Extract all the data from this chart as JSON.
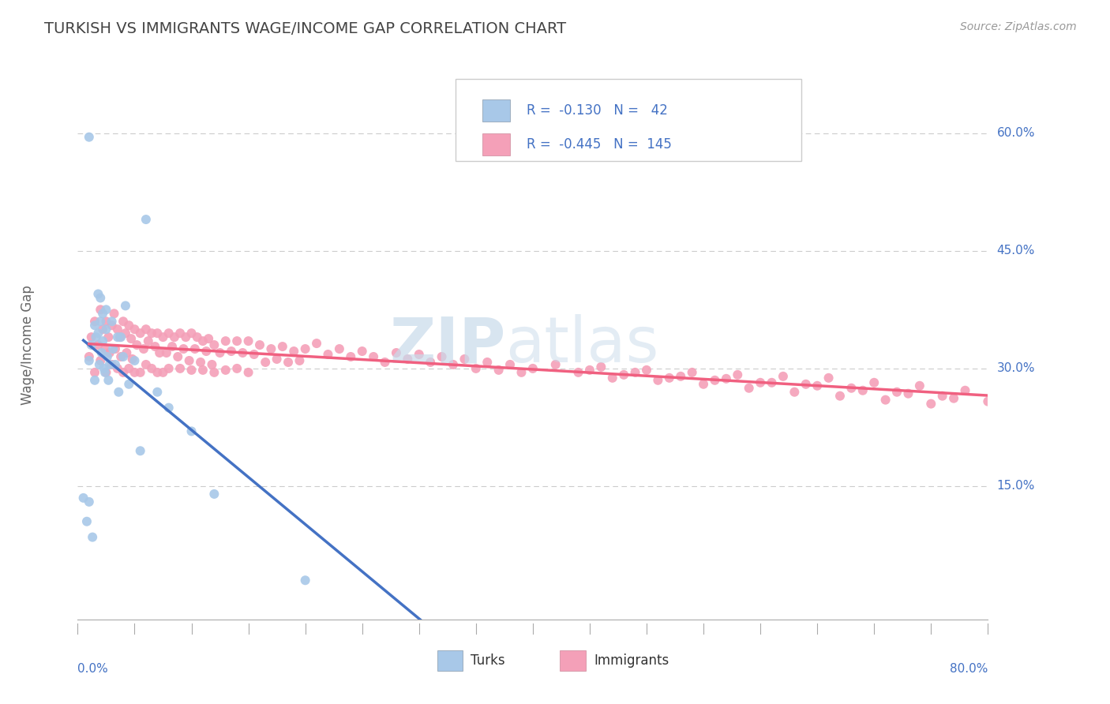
{
  "title": "TURKISH VS IMMIGRANTS WAGE/INCOME GAP CORRELATION CHART",
  "source": "Source: ZipAtlas.com",
  "ylabel": "Wage/Income Gap",
  "right_yticks": [
    "60.0%",
    "45.0%",
    "30.0%",
    "15.0%"
  ],
  "right_ytick_vals": [
    0.6,
    0.45,
    0.3,
    0.15
  ],
  "turk_color": "#a8c8e8",
  "immigrant_color": "#f4a0b8",
  "turk_line_color": "#4472c4",
  "immigrant_line_color": "#f06080",
  "dashed_line_color": "#b0c8d8",
  "xlim": [
    0.0,
    0.8
  ],
  "ylim": [
    -0.02,
    0.68
  ],
  "turks_x": [
    0.005,
    0.008,
    0.01,
    0.01,
    0.012,
    0.013,
    0.015,
    0.015,
    0.016,
    0.018,
    0.018,
    0.019,
    0.02,
    0.02,
    0.021,
    0.022,
    0.022,
    0.023,
    0.024,
    0.025,
    0.025,
    0.026,
    0.027,
    0.028,
    0.03,
    0.031,
    0.033,
    0.035,
    0.036,
    0.038,
    0.04,
    0.042,
    0.045,
    0.05,
    0.055,
    0.06,
    0.07,
    0.08,
    0.1,
    0.12,
    0.2,
    0.01
  ],
  "turks_y": [
    0.135,
    0.105,
    0.31,
    0.13,
    0.33,
    0.085,
    0.355,
    0.285,
    0.34,
    0.395,
    0.345,
    0.305,
    0.39,
    0.36,
    0.32,
    0.37,
    0.335,
    0.3,
    0.295,
    0.375,
    0.35,
    0.315,
    0.285,
    0.305,
    0.36,
    0.325,
    0.305,
    0.34,
    0.27,
    0.34,
    0.315,
    0.38,
    0.28,
    0.31,
    0.195,
    0.49,
    0.27,
    0.25,
    0.22,
    0.14,
    0.03,
    0.595
  ],
  "immigrants_x": [
    0.01,
    0.012,
    0.015,
    0.015,
    0.018,
    0.02,
    0.02,
    0.022,
    0.024,
    0.025,
    0.025,
    0.027,
    0.028,
    0.03,
    0.03,
    0.032,
    0.033,
    0.035,
    0.035,
    0.037,
    0.038,
    0.04,
    0.04,
    0.042,
    0.043,
    0.045,
    0.045,
    0.047,
    0.048,
    0.05,
    0.05,
    0.052,
    0.055,
    0.055,
    0.058,
    0.06,
    0.06,
    0.062,
    0.065,
    0.065,
    0.068,
    0.07,
    0.07,
    0.072,
    0.075,
    0.075,
    0.078,
    0.08,
    0.08,
    0.083,
    0.085,
    0.088,
    0.09,
    0.09,
    0.093,
    0.095,
    0.098,
    0.1,
    0.1,
    0.103,
    0.105,
    0.108,
    0.11,
    0.11,
    0.113,
    0.115,
    0.118,
    0.12,
    0.12,
    0.125,
    0.13,
    0.13,
    0.135,
    0.14,
    0.14,
    0.145,
    0.15,
    0.15,
    0.155,
    0.16,
    0.165,
    0.17,
    0.175,
    0.18,
    0.185,
    0.19,
    0.195,
    0.2,
    0.21,
    0.22,
    0.23,
    0.24,
    0.25,
    0.26,
    0.27,
    0.28,
    0.29,
    0.3,
    0.31,
    0.32,
    0.33,
    0.34,
    0.35,
    0.36,
    0.37,
    0.38,
    0.39,
    0.4,
    0.42,
    0.44,
    0.46,
    0.48,
    0.5,
    0.52,
    0.54,
    0.56,
    0.58,
    0.6,
    0.62,
    0.64,
    0.66,
    0.68,
    0.7,
    0.72,
    0.74,
    0.76,
    0.78,
    0.8,
    0.45,
    0.47,
    0.49,
    0.51,
    0.53,
    0.55,
    0.57,
    0.59,
    0.61,
    0.63,
    0.65,
    0.67,
    0.69,
    0.71,
    0.73,
    0.75,
    0.77
  ],
  "immigrants_y": [
    0.315,
    0.34,
    0.36,
    0.295,
    0.33,
    0.375,
    0.31,
    0.35,
    0.325,
    0.36,
    0.295,
    0.34,
    0.32,
    0.355,
    0.305,
    0.37,
    0.325,
    0.35,
    0.3,
    0.34,
    0.315,
    0.36,
    0.295,
    0.345,
    0.32,
    0.355,
    0.3,
    0.338,
    0.312,
    0.35,
    0.295,
    0.33,
    0.345,
    0.295,
    0.325,
    0.35,
    0.305,
    0.335,
    0.345,
    0.3,
    0.328,
    0.345,
    0.295,
    0.32,
    0.34,
    0.295,
    0.32,
    0.345,
    0.3,
    0.328,
    0.34,
    0.315,
    0.345,
    0.3,
    0.325,
    0.34,
    0.31,
    0.345,
    0.298,
    0.325,
    0.34,
    0.308,
    0.335,
    0.298,
    0.322,
    0.338,
    0.305,
    0.33,
    0.295,
    0.32,
    0.335,
    0.298,
    0.322,
    0.335,
    0.3,
    0.32,
    0.335,
    0.295,
    0.318,
    0.33,
    0.308,
    0.325,
    0.312,
    0.328,
    0.308,
    0.322,
    0.31,
    0.325,
    0.332,
    0.318,
    0.325,
    0.315,
    0.322,
    0.315,
    0.308,
    0.32,
    0.312,
    0.318,
    0.308,
    0.315,
    0.305,
    0.312,
    0.3,
    0.308,
    0.298,
    0.305,
    0.295,
    0.3,
    0.305,
    0.295,
    0.302,
    0.292,
    0.298,
    0.288,
    0.295,
    0.285,
    0.292,
    0.282,
    0.29,
    0.28,
    0.288,
    0.275,
    0.282,
    0.27,
    0.278,
    0.265,
    0.272,
    0.258,
    0.298,
    0.288,
    0.295,
    0.285,
    0.29,
    0.28,
    0.287,
    0.275,
    0.282,
    0.27,
    0.278,
    0.265,
    0.272,
    0.26,
    0.268,
    0.255,
    0.262
  ]
}
